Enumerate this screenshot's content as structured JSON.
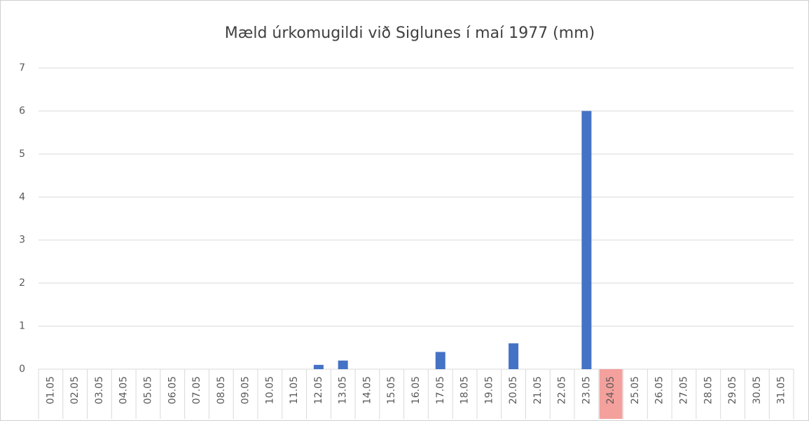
{
  "chart_data": {
    "type": "bar",
    "title": "Mæld úrkomugildi við Siglunes í maí 1977 (mm)",
    "categories": [
      "01.05",
      "02.05",
      "03.05",
      "04.05",
      "05.05",
      "06.05",
      "07.05",
      "08.05",
      "09.05",
      "10.05",
      "11.05",
      "12.05",
      "13.05",
      "14.05",
      "15.05",
      "16.05",
      "17.05",
      "18.05",
      "19.05",
      "20.05",
      "21.05",
      "22.05",
      "23.05",
      "24.05",
      "25.05",
      "26.05",
      "27.05",
      "28.05",
      "29.05",
      "30.05",
      "31.05"
    ],
    "values": [
      0,
      0,
      0,
      0,
      0,
      0,
      0,
      0,
      0,
      0,
      0,
      0.1,
      0.2,
      0,
      0,
      0,
      0.4,
      0,
      0,
      0.6,
      0,
      0,
      6,
      0,
      0,
      0,
      0,
      0,
      0,
      0,
      0
    ],
    "color": "#4472c4",
    "highlight_index": 23,
    "highlight_color": "#f4a09c",
    "ylim": [
      0,
      7
    ],
    "yticks": [
      0,
      1,
      2,
      3,
      4,
      5,
      6,
      7
    ],
    "grid": true
  }
}
